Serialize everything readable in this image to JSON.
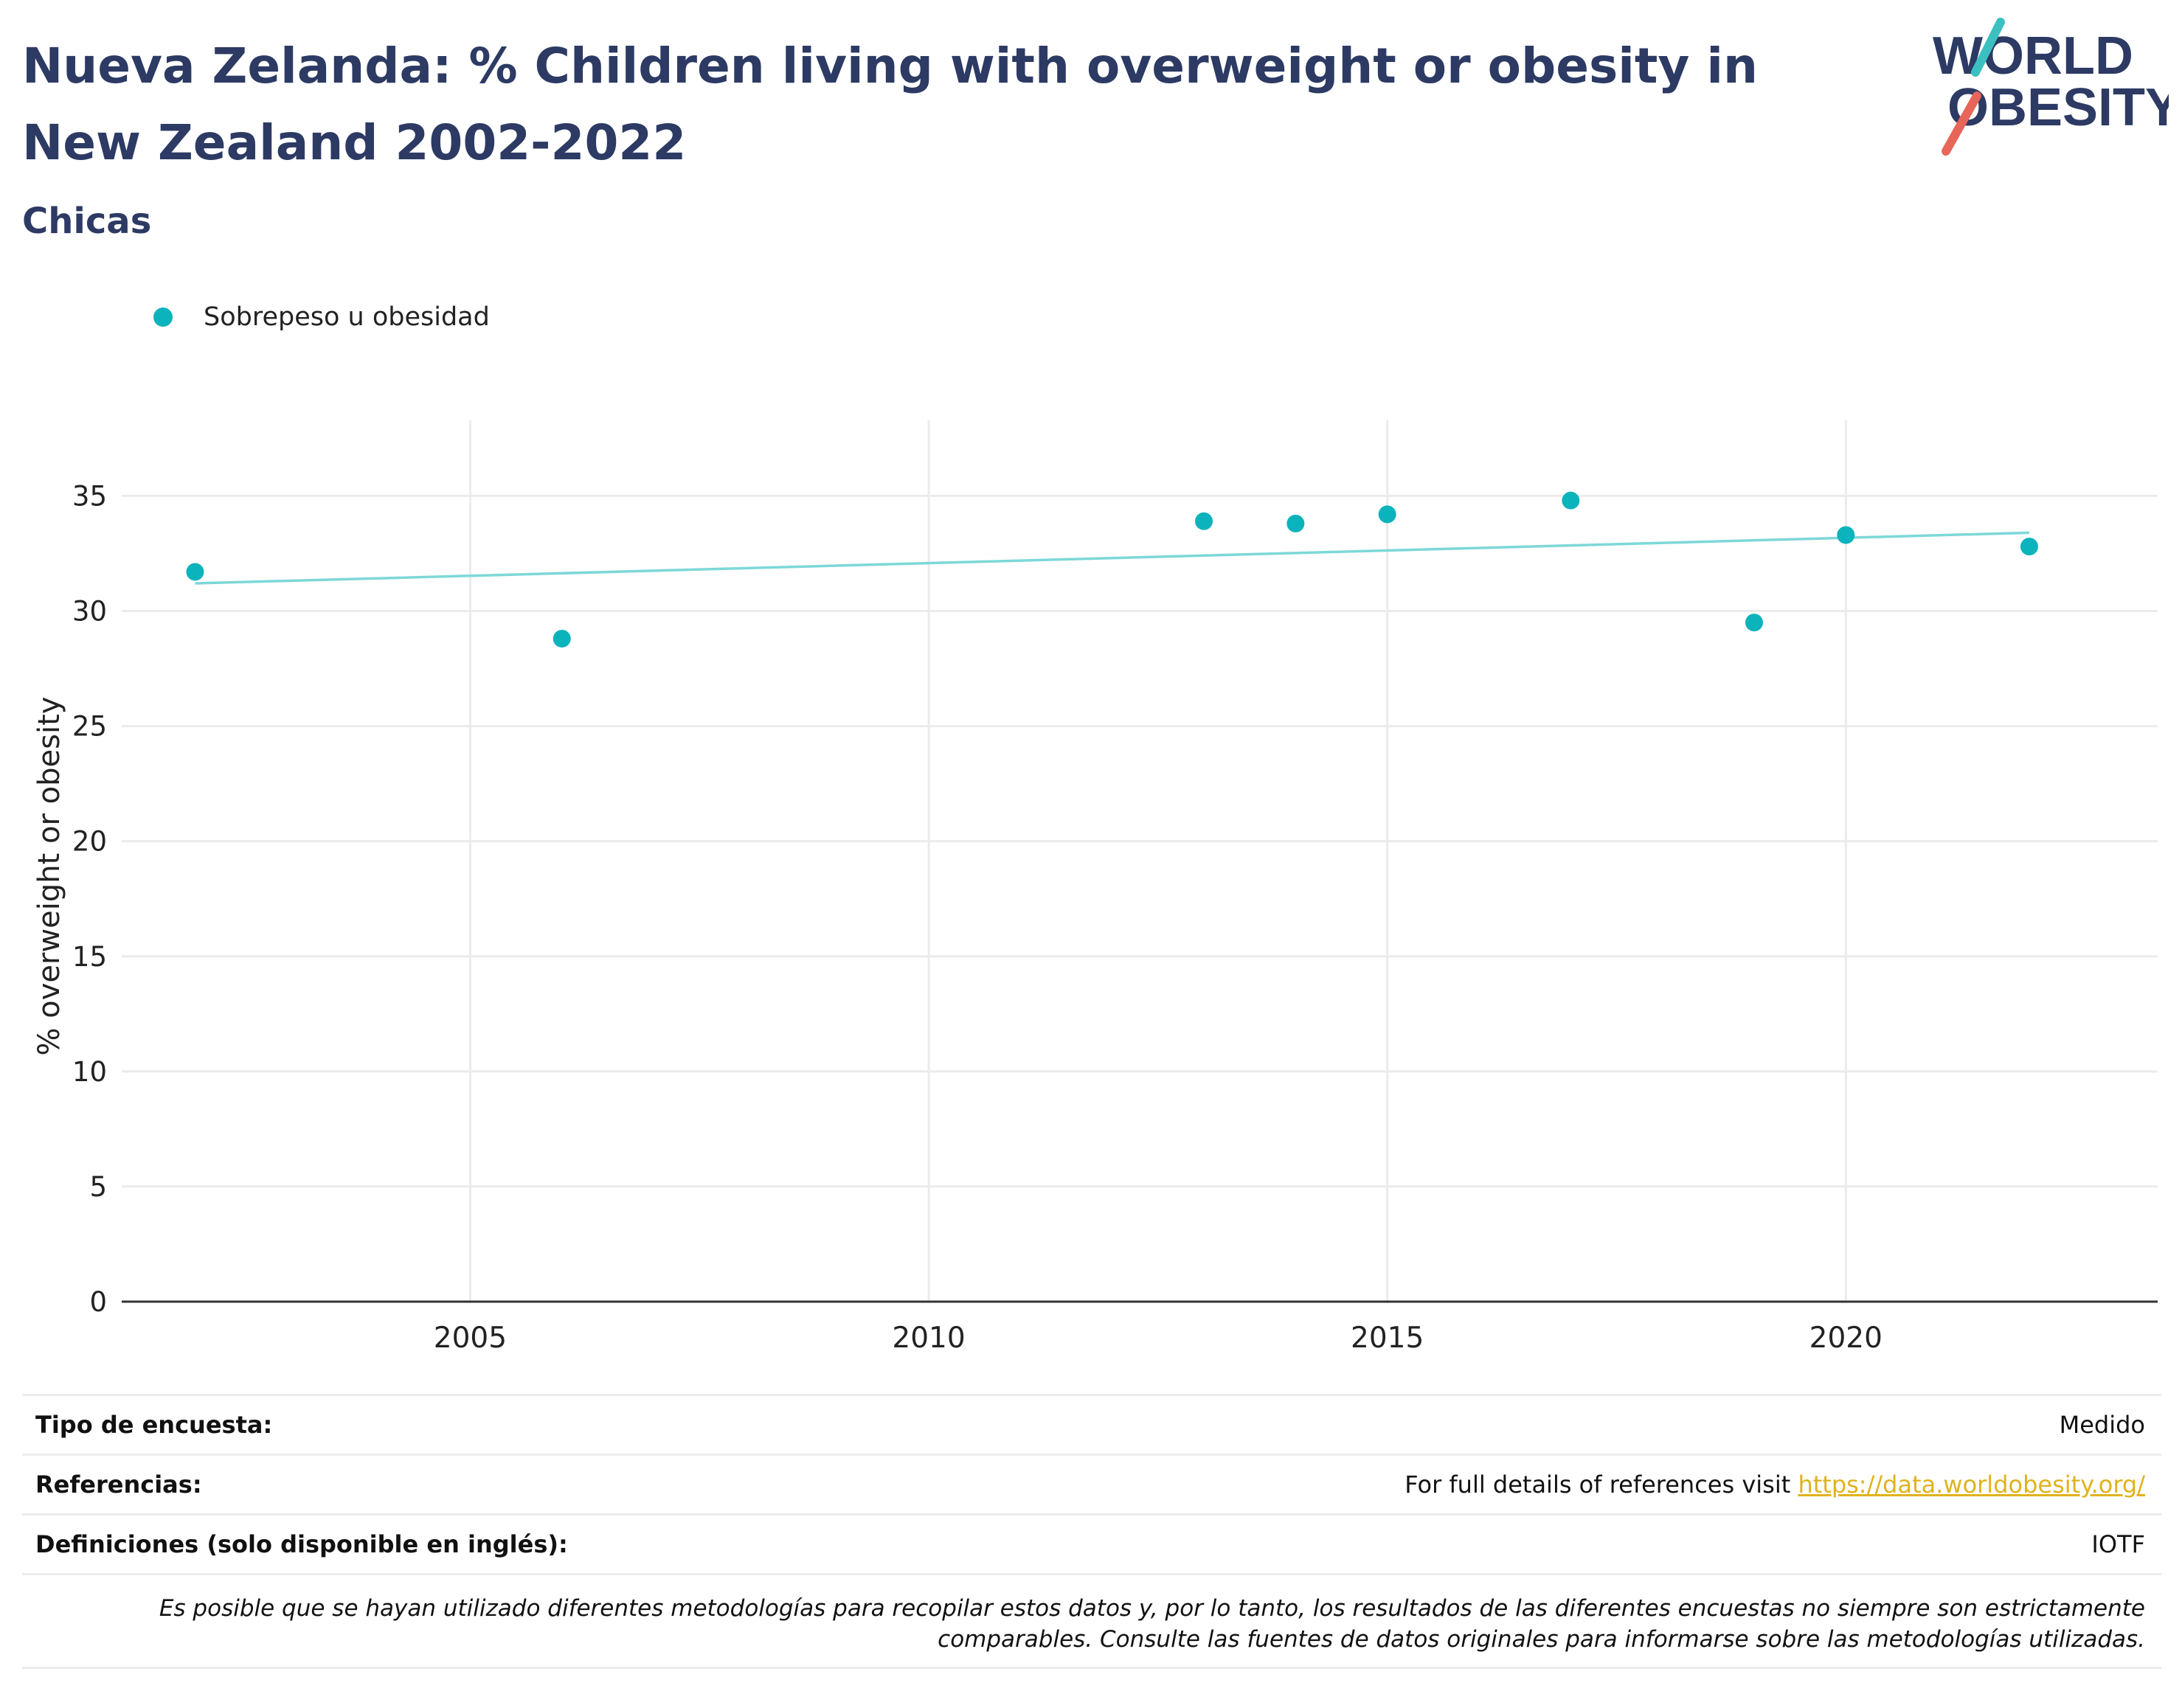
{
  "header": {
    "title": "Nueva Zelanda: % Children living with overweight or obesity in New Zealand 2002-2022",
    "subtitle": "Chicas",
    "logo": {
      "line1": "WORLD",
      "line2": "OBESITY"
    }
  },
  "legend": {
    "label": "Sobrepeso u obesidad"
  },
  "colors": {
    "accent": "#0bb3bc",
    "trend": "#7dd8d8",
    "title": "#2c3a64",
    "link": "#e0b21c",
    "logo_teal": "#3bbfc1",
    "logo_red": "#e8655a"
  },
  "chart_data": {
    "type": "scatter",
    "ylabel": "% overweight or obesity",
    "xlabel": "",
    "xlim": [
      2001.2,
      2023.4
    ],
    "ylim": [
      0,
      37
    ],
    "xticks": [
      2005,
      2010,
      2015,
      2020
    ],
    "yticks": [
      0,
      5,
      10,
      15,
      20,
      25,
      30,
      35
    ],
    "grid": true,
    "series": [
      {
        "name": "Sobrepeso u obesidad",
        "x": [
          2002,
          2006,
          2013,
          2014,
          2015,
          2017,
          2019,
          2020,
          2022
        ],
        "y": [
          31.7,
          28.8,
          33.9,
          33.8,
          34.2,
          34.8,
          29.5,
          33.3,
          32.8
        ]
      }
    ],
    "trendline": {
      "x": [
        2002,
        2022
      ],
      "y": [
        31.2,
        33.4
      ]
    }
  },
  "footer": {
    "survey_type_label": "Tipo de encuesta:",
    "survey_type_value": "Medido",
    "references_label": "Referencias:",
    "references_text": "For full details of references visit ",
    "references_link": "https://data.worldobesity.org/",
    "definitions_label": "Definiciones (solo disponible en inglés):",
    "definitions_value": "IOTF",
    "note": "Es posible que se hayan utilizado diferentes metodologías para recopilar estos datos y, por lo tanto, los resultados de las diferentes encuestas no siempre son estrictamente comparables. Consulte las fuentes de datos originales para informarse sobre las metodologías utilizadas."
  }
}
